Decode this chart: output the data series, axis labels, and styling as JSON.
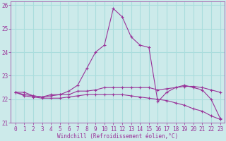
{
  "xlabel": "Windchill (Refroidissement éolien,°C)",
  "background_color": "#cceaea",
  "line_color": "#993399",
  "grid_color": "#aadddd",
  "hours": [
    0,
    1,
    2,
    3,
    4,
    5,
    6,
    7,
    8,
    9,
    10,
    11,
    12,
    13,
    14,
    15,
    16,
    17,
    18,
    19,
    20,
    21,
    22,
    23
  ],
  "line1": [
    22.3,
    22.3,
    22.15,
    22.1,
    22.2,
    22.2,
    22.35,
    22.6,
    23.3,
    24.0,
    24.3,
    25.85,
    25.5,
    24.65,
    24.3,
    24.2,
    21.9,
    22.3,
    22.5,
    22.6,
    22.5,
    22.4,
    22.0,
    21.2
  ],
  "line2": [
    22.3,
    22.2,
    22.15,
    22.1,
    22.15,
    22.2,
    22.2,
    22.35,
    22.35,
    22.4,
    22.5,
    22.5,
    22.5,
    22.5,
    22.5,
    22.5,
    22.4,
    22.45,
    22.5,
    22.55,
    22.55,
    22.5,
    22.4,
    22.3
  ],
  "line3": [
    22.3,
    22.15,
    22.1,
    22.05,
    22.05,
    22.05,
    22.1,
    22.15,
    22.2,
    22.2,
    22.2,
    22.2,
    22.2,
    22.15,
    22.1,
    22.05,
    22.0,
    21.95,
    21.85,
    21.75,
    21.6,
    21.5,
    21.3,
    21.15
  ],
  "xlim": [
    -0.5,
    23.5
  ],
  "ylim": [
    21.0,
    26.15
  ],
  "yticks": [
    21,
    22,
    23,
    24,
    25,
    26
  ],
  "xticks": [
    0,
    1,
    2,
    3,
    4,
    5,
    6,
    7,
    8,
    9,
    10,
    11,
    12,
    13,
    14,
    15,
    16,
    17,
    18,
    19,
    20,
    21,
    22,
    23
  ],
  "tick_fontsize": 5.5,
  "xlabel_fontsize": 5.5
}
